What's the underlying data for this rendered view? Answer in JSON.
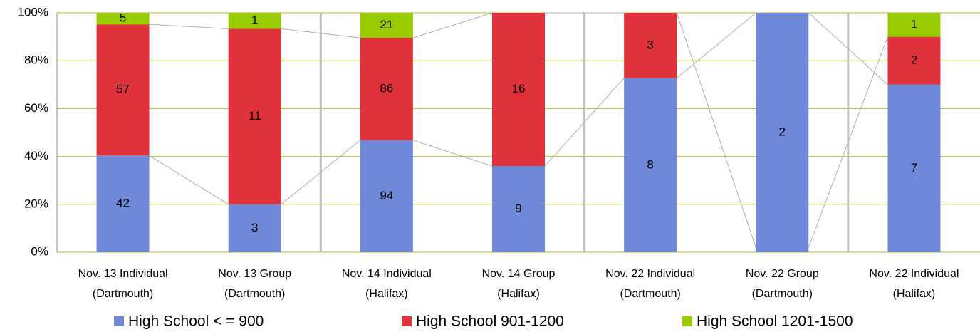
{
  "chart_data": {
    "type": "stacked_percent_bar",
    "categories": [
      [
        "Nov. 13 Individual",
        "(Dartmouth)"
      ],
      [
        "Nov. 13 Group",
        "(Dartmouth)"
      ],
      [
        "Nov. 14 Individual",
        "(Halifax)"
      ],
      [
        "Nov. 14 Group",
        "(Halifax)"
      ],
      [
        "Nov. 22 Individual",
        "(Dartmouth)"
      ],
      [
        "Nov. 22 Group",
        "(Dartmouth)"
      ],
      [
        "Nov. 22 Individual",
        "(Halifax)"
      ]
    ],
    "series": [
      {
        "name": "High School < = 900",
        "color": "#6f88d8",
        "values": [
          42,
          3,
          94,
          9,
          8,
          2,
          7
        ]
      },
      {
        "name": "High School 901-1200",
        "color": "#e0323a",
        "values": [
          57,
          11,
          86,
          16,
          3,
          null,
          2
        ]
      },
      {
        "name": "High School 1201-1500",
        "color": "#99cc00",
        "values": [
          5,
          1,
          21,
          null,
          null,
          null,
          1
        ]
      }
    ],
    "ylim": [
      0,
      100
    ],
    "yticks": [
      {
        "value": 0,
        "label": "0%"
      },
      {
        "value": 20,
        "label": "20%"
      },
      {
        "value": 40,
        "label": "40%"
      },
      {
        "value": 60,
        "label": "60%"
      },
      {
        "value": 80,
        "label": "80%"
      },
      {
        "value": 100,
        "label": "100%"
      }
    ],
    "grid": true,
    "legend": "bottom"
  }
}
